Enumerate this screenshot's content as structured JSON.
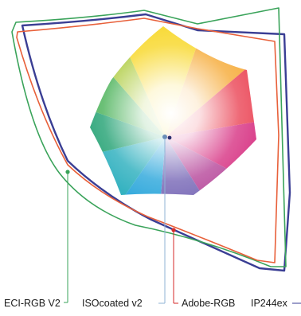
{
  "diagram": {
    "labels": {
      "eci_rgb": "ECI-RGB V2",
      "isocoated": "ISOcoated v2",
      "adobe_rgb": "Adobe-RGB",
      "ip244": "IP244ex"
    },
    "colors": {
      "eci_rgb": "#3aa35a",
      "isocoated": "#8fb3d6",
      "adobe_rgb": "#e8603a",
      "ip244": "#3a3e94",
      "adobe_leader": "#d42a2a"
    }
  }
}
